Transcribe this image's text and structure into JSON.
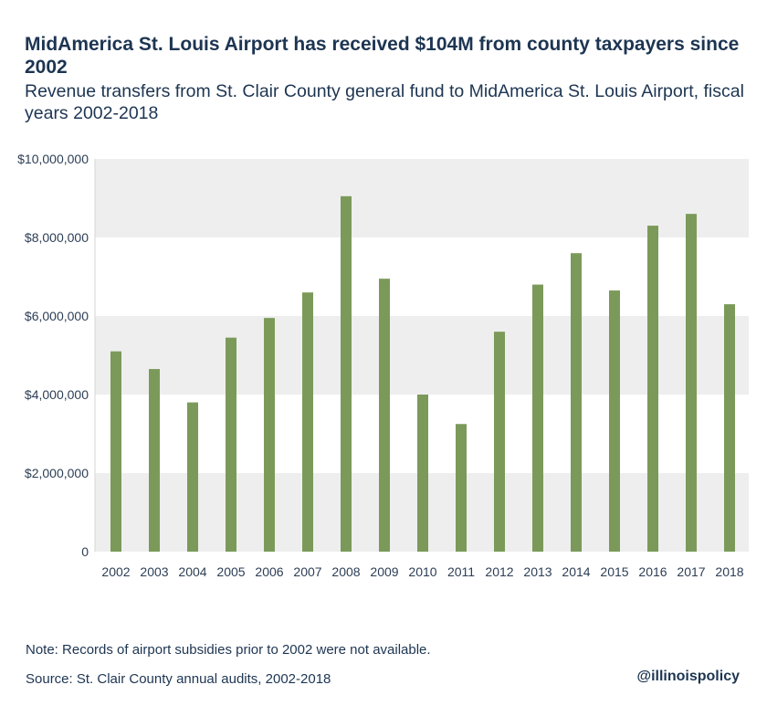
{
  "header": {
    "title": "MidAmerica St. Louis Airport has received $104M from county taxpayers since 2002",
    "subtitle": "Revenue transfers from St. Clair County general fund to MidAmerica St. Louis Airport, fiscal years 2002-2018"
  },
  "footer": {
    "note": "Note: Records of airport subsidies prior to 2002 were not available.",
    "source": "Source: St. Clair County annual audits, 2002-2018",
    "handle": "@illinoispolicy"
  },
  "colors": {
    "bar": "#7b9a5a",
    "band": "#eeeeee",
    "text": "#1d3552"
  },
  "chart_data": {
    "type": "bar",
    "title": "MidAmerica St. Louis Airport has received $104M from county taxpayers since 2002",
    "subtitle": "Revenue transfers from St. Clair County general fund to MidAmerica St. Louis Airport, fiscal years 2002-2018",
    "xlabel": "",
    "ylabel": "",
    "categories": [
      "2002",
      "2003",
      "2004",
      "2005",
      "2006",
      "2007",
      "2008",
      "2009",
      "2010",
      "2011",
      "2012",
      "2013",
      "2014",
      "2015",
      "2016",
      "2017",
      "2018"
    ],
    "values": [
      5100000,
      4650000,
      3800000,
      5450000,
      5950000,
      6600000,
      9050000,
      6950000,
      4000000,
      3250000,
      5600000,
      6800000,
      7600000,
      6650000,
      8300000,
      8600000,
      6300000
    ],
    "ylim": [
      0,
      10000000
    ],
    "yticks": [
      0,
      2000000,
      4000000,
      6000000,
      8000000,
      10000000
    ],
    "ytick_labels": [
      "0",
      "$2,000,000",
      "$4,000,000",
      "$6,000,000",
      "$8,000,000",
      "$10,000,000"
    ],
    "grid": "alternating horizontal bands",
    "legend": "none"
  }
}
